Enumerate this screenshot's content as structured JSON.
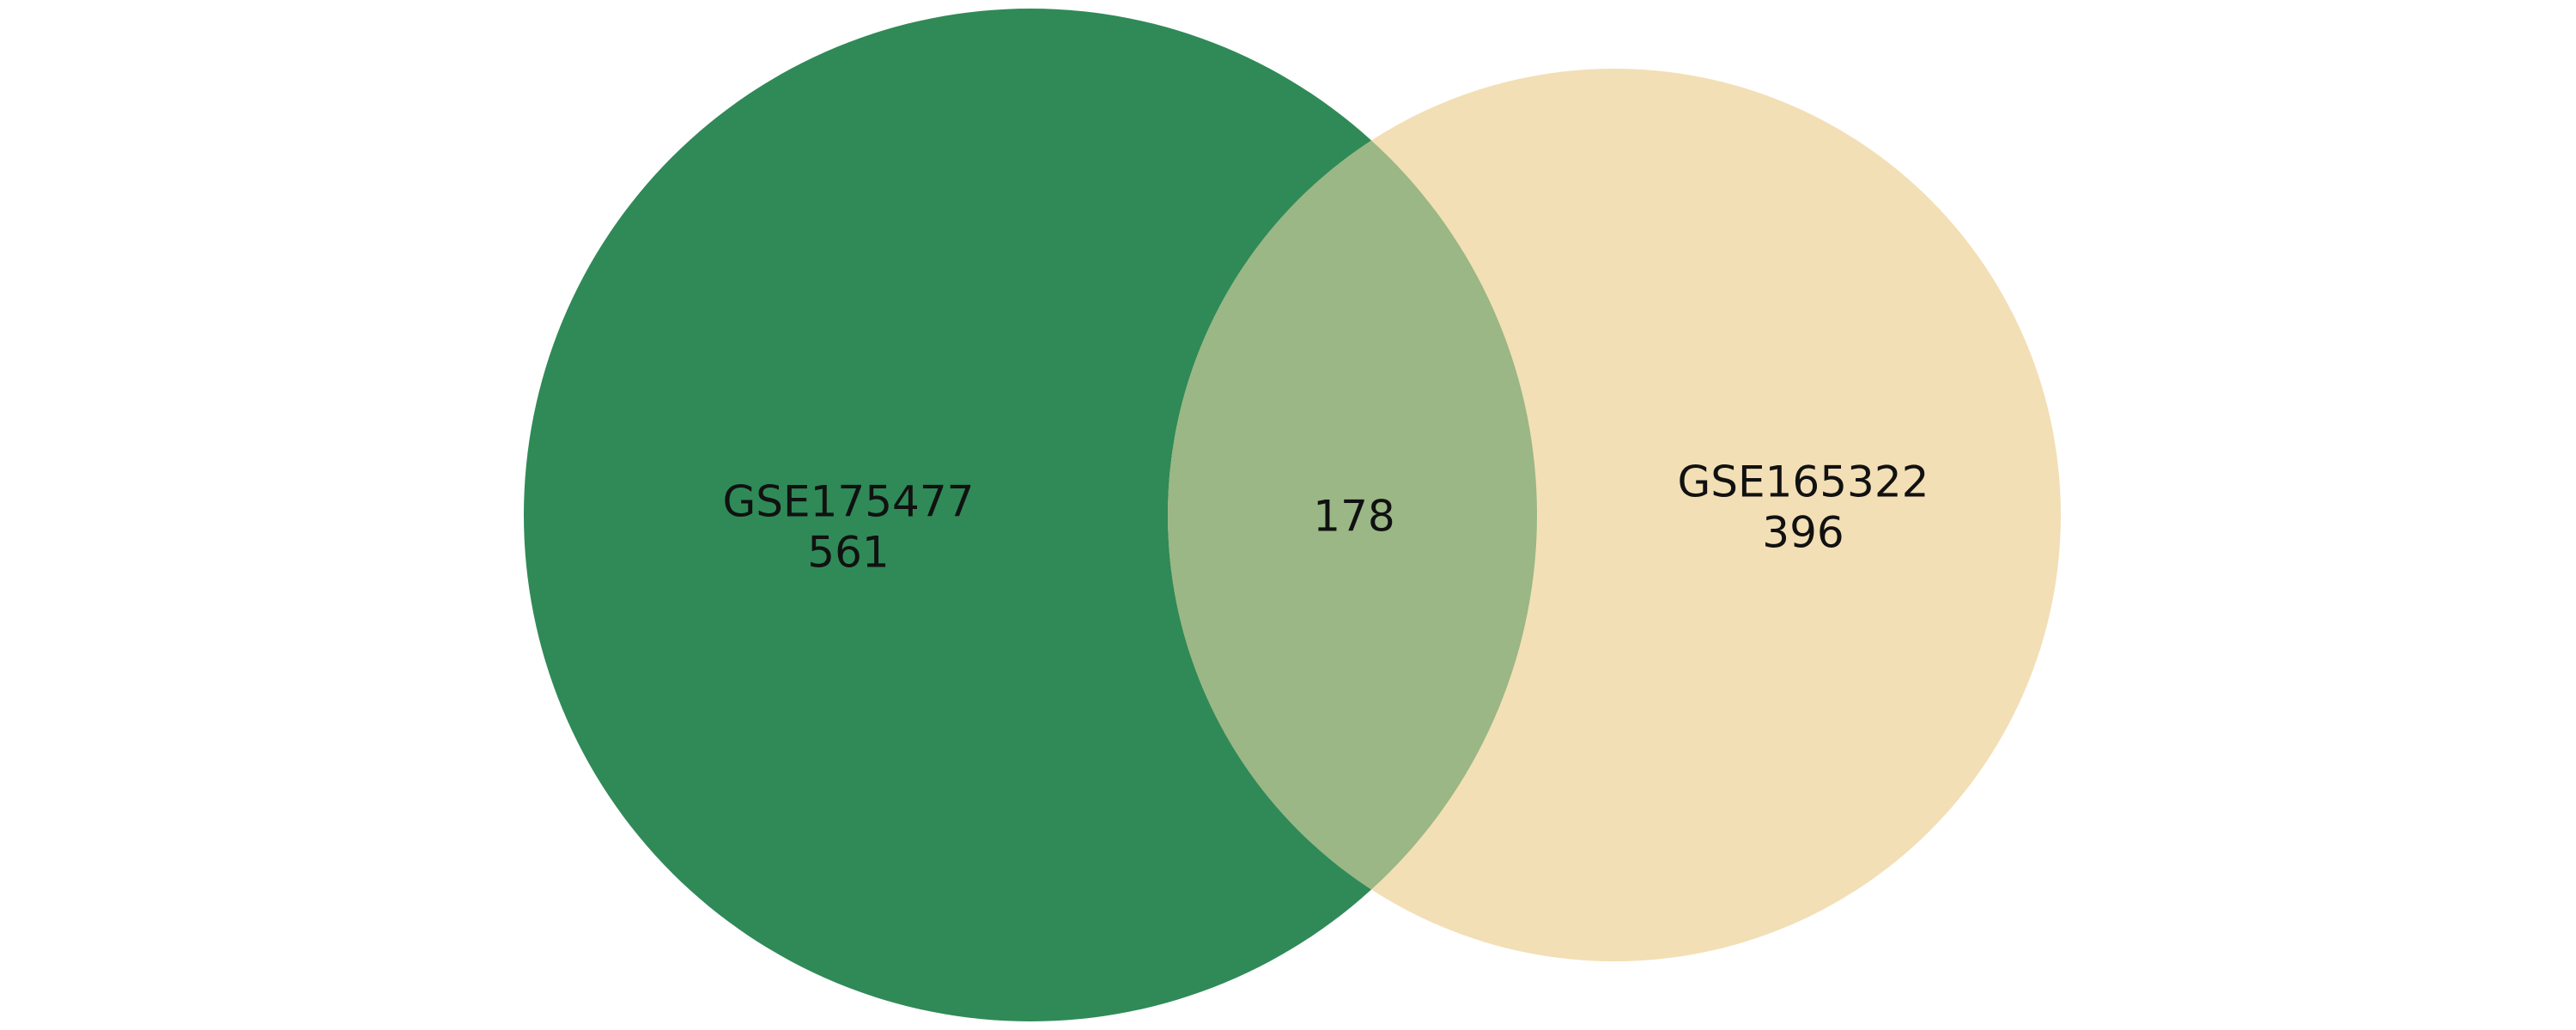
{
  "chart_data": {
    "type": "venn",
    "sets": [
      {
        "name": "GSE175477",
        "only_count": "561",
        "color": "#2f8a57"
      },
      {
        "name": "GSE165322",
        "only_count": "396",
        "color": "#f3dfb5"
      }
    ],
    "intersection": {
      "count": "178",
      "color": "#9ab785"
    }
  }
}
